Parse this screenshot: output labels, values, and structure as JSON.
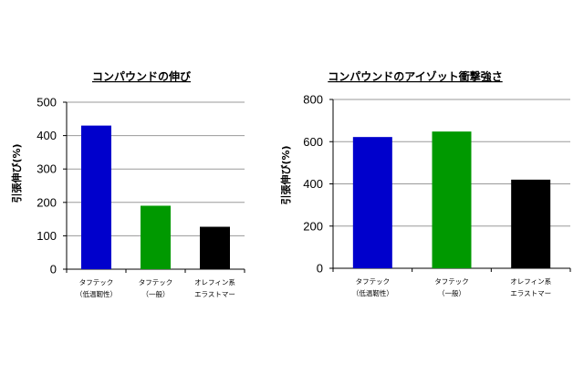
{
  "chart_data": [
    {
      "type": "bar",
      "title": "コンパウンドの伸び",
      "ylabel": "引張伸び(%)",
      "xlabel": "",
      "ylim": [
        0,
        500
      ],
      "yticks": [
        "0",
        "100",
        "200",
        "300",
        "400",
        "500"
      ],
      "grid": true,
      "categories": [
        [
          "タフテック",
          "（低温靭性）"
        ],
        [
          "タフテック",
          "（一般）"
        ],
        [
          "オレフィン系",
          "エラストマー"
        ]
      ],
      "values": [
        430,
        190,
        127
      ],
      "colors": [
        "#0000cc",
        "#009900",
        "#000000"
      ]
    },
    {
      "type": "bar",
      "title": "コンパウンドのアイゾット衝撃強さ",
      "ylabel": "引張伸び(%)",
      "xlabel": "",
      "ylim": [
        0,
        800
      ],
      "yticks": [
        "0",
        "200",
        "400",
        "600",
        "800"
      ],
      "grid": true,
      "categories": [
        [
          "タフテック",
          "（低温靭性）"
        ],
        [
          "タフテック",
          "（一般）"
        ],
        [
          "オレフィン系",
          "エラストマー"
        ]
      ],
      "values": [
        622,
        648,
        420
      ],
      "colors": [
        "#0000cc",
        "#009900",
        "#000000"
      ]
    }
  ]
}
